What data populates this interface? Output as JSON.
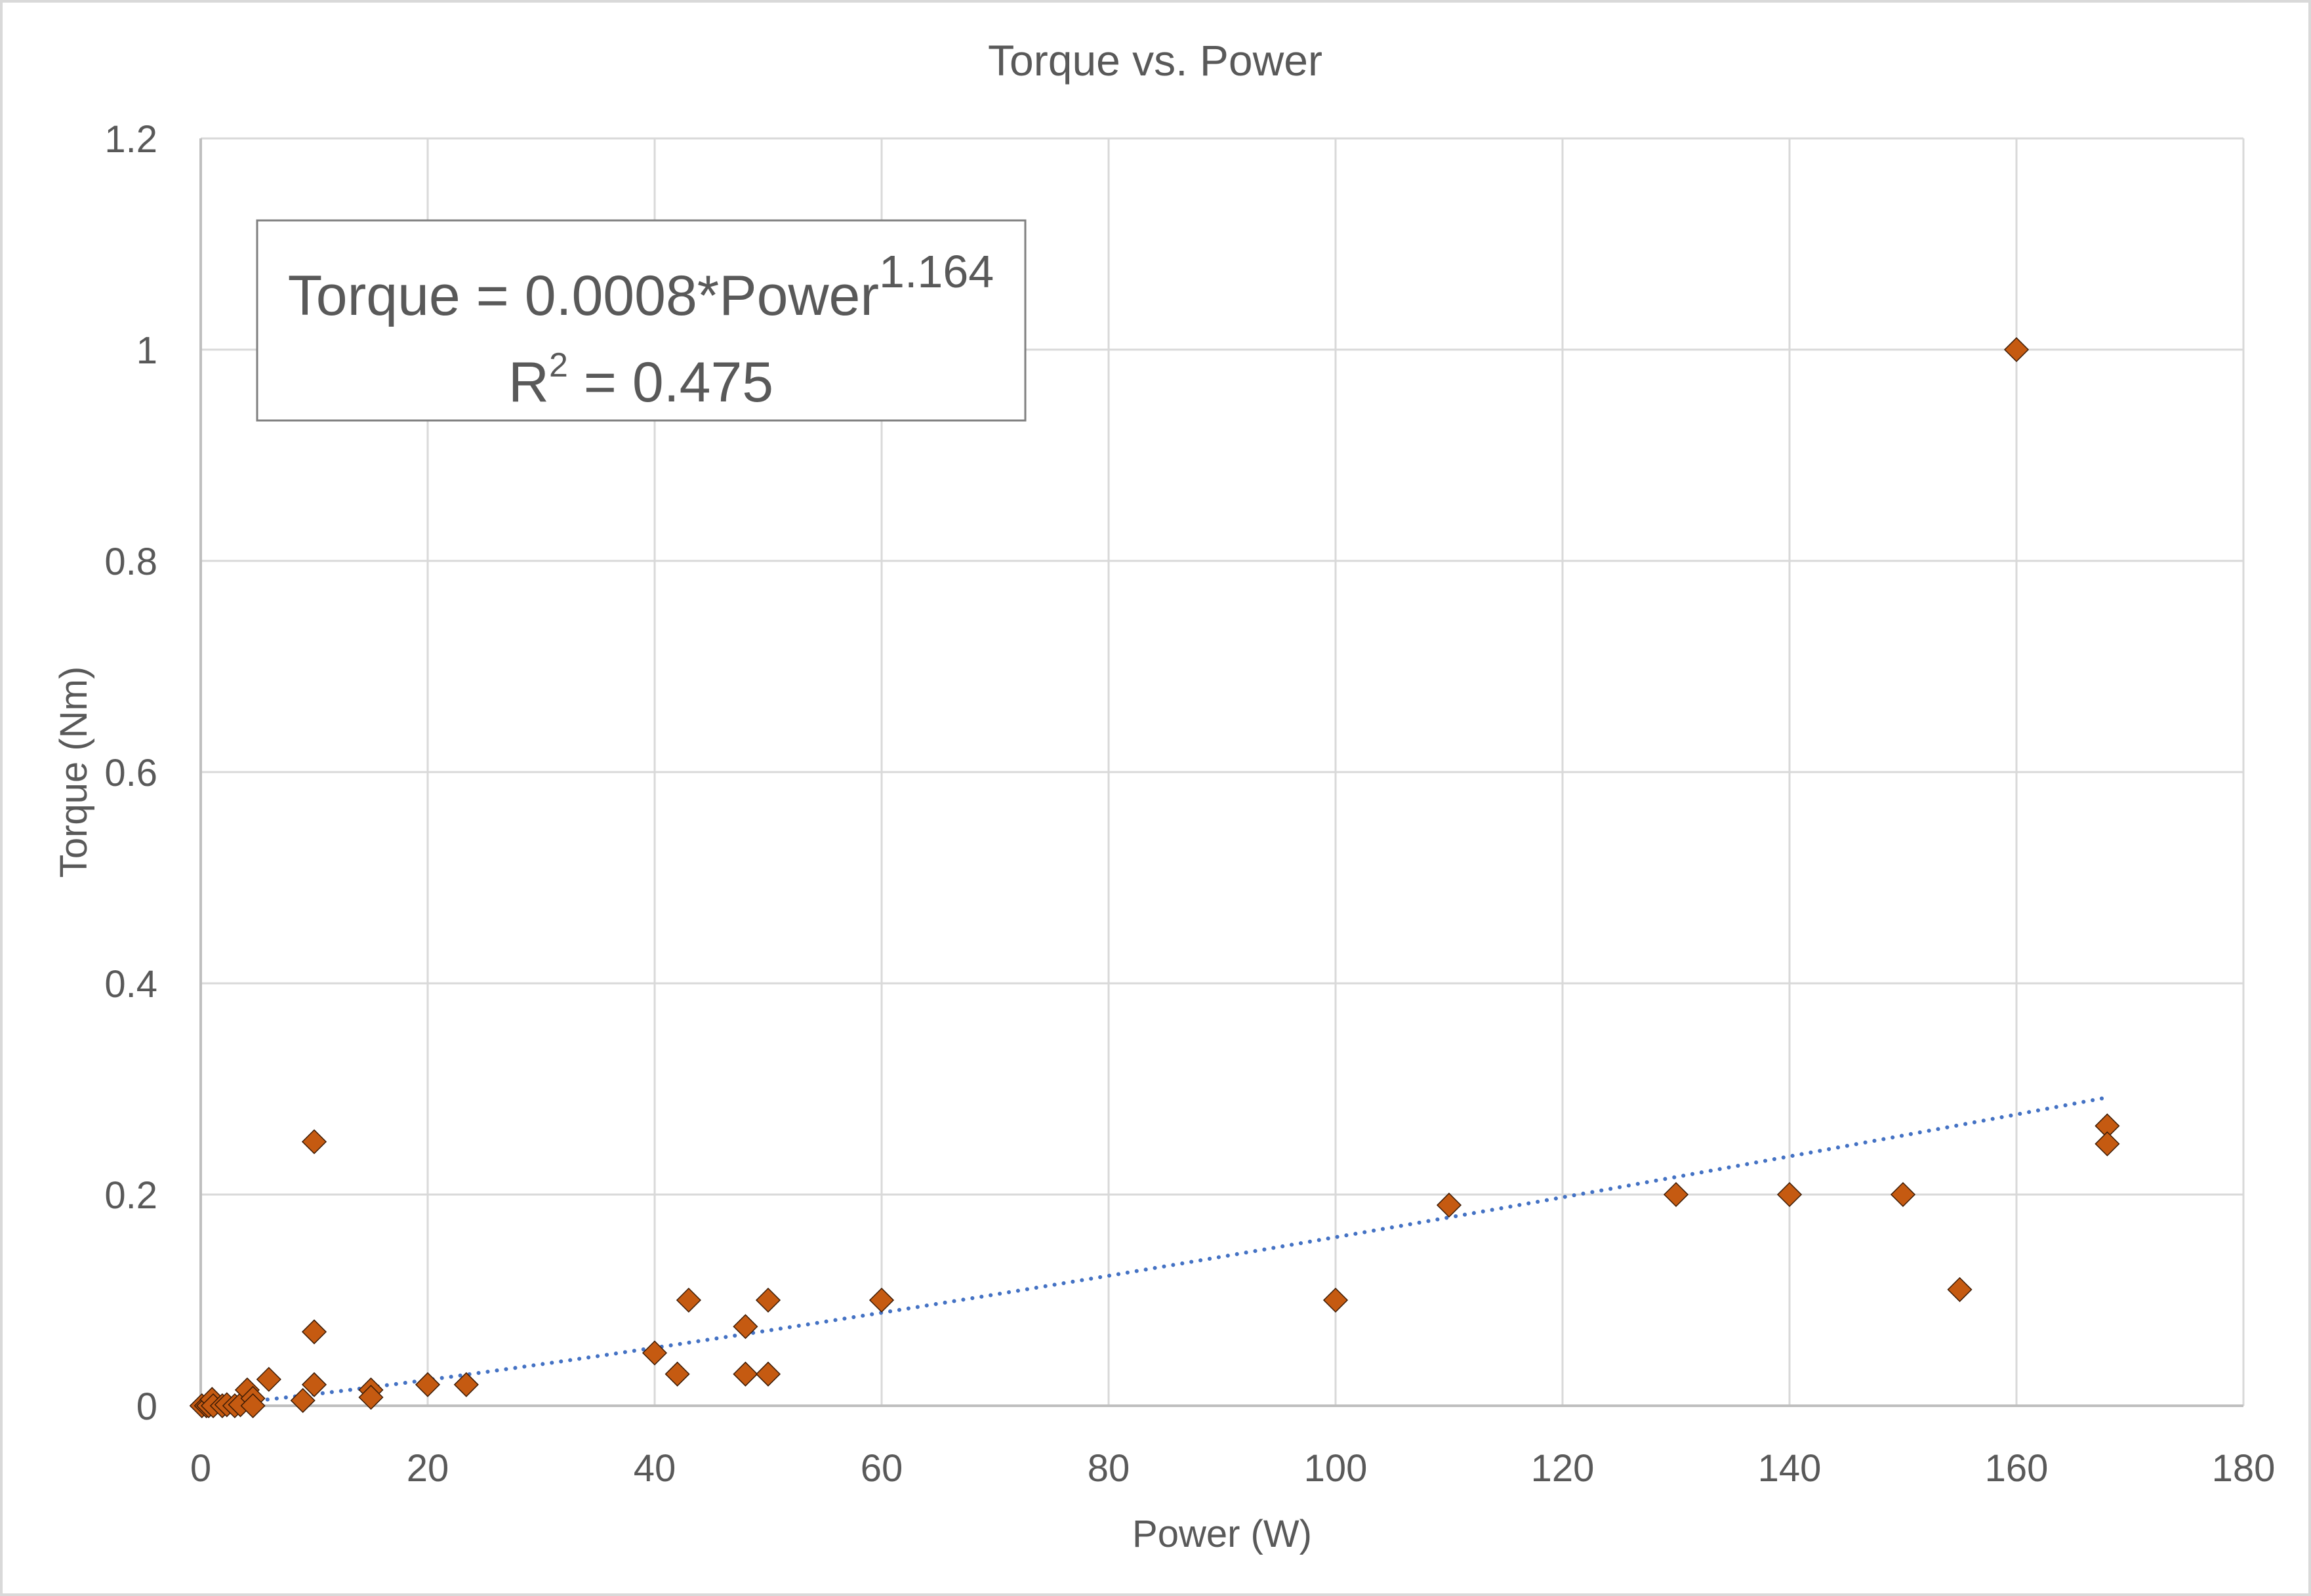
{
  "chart_data": {
    "type": "scatter",
    "title": "Torque vs. Power",
    "xlabel": "Power (W)",
    "ylabel": "Torque (Nm)",
    "xlim": [
      0,
      180
    ],
    "ylim": [
      0,
      1.2
    ],
    "x_ticks": [
      0,
      20,
      40,
      60,
      80,
      100,
      120,
      140,
      160,
      180
    ],
    "y_ticks": [
      0,
      0.2,
      0.4,
      0.6,
      0.8,
      1,
      1.2
    ],
    "x_tick_labels": [
      "0",
      "20",
      "40",
      "60",
      "80",
      "100",
      "120",
      "140",
      "160",
      "180"
    ],
    "y_tick_labels": [
      "0",
      "0.2",
      "0.4",
      "0.6",
      "0.8",
      "1",
      "1.2"
    ],
    "grid": true,
    "legend": null,
    "series": [
      {
        "name": "Torque",
        "marker": "diamond",
        "color": "#C55A11",
        "points": [
          {
            "x": 0.1,
            "y": 0
          },
          {
            "x": 0.5,
            "y": 0
          },
          {
            "x": 0.7,
            "y": 0
          },
          {
            "x": 1.0,
            "y": 0.006
          },
          {
            "x": 1.1,
            "y": 0
          },
          {
            "x": 1.9,
            "y": 0
          },
          {
            "x": 2.3,
            "y": 0.001
          },
          {
            "x": 3.0,
            "y": 0
          },
          {
            "x": 3.5,
            "y": 0.001
          },
          {
            "x": 4.1,
            "y": 0.015
          },
          {
            "x": 4.6,
            "y": 0.007
          },
          {
            "x": 4.6,
            "y": 0
          },
          {
            "x": 6,
            "y": 0.025
          },
          {
            "x": 9,
            "y": 0.005
          },
          {
            "x": 10,
            "y": 0.25
          },
          {
            "x": 10,
            "y": 0.07
          },
          {
            "x": 10,
            "y": 0.02
          },
          {
            "x": 15,
            "y": 0.015
          },
          {
            "x": 15,
            "y": 0.008
          },
          {
            "x": 20,
            "y": 0.02
          },
          {
            "x": 23.4,
            "y": 0.02
          },
          {
            "x": 40,
            "y": 0.05
          },
          {
            "x": 42,
            "y": 0.03
          },
          {
            "x": 43,
            "y": 0.1
          },
          {
            "x": 48,
            "y": 0.075
          },
          {
            "x": 48,
            "y": 0.03
          },
          {
            "x": 50,
            "y": 0.1
          },
          {
            "x": 50,
            "y": 0.03
          },
          {
            "x": 60,
            "y": 0.1
          },
          {
            "x": 100,
            "y": 0.1
          },
          {
            "x": 110,
            "y": 0.19
          },
          {
            "x": 130,
            "y": 0.2
          },
          {
            "x": 140,
            "y": 0.2
          },
          {
            "x": 150,
            "y": 0.2
          },
          {
            "x": 155,
            "y": 0.11
          },
          {
            "x": 160,
            "y": 1.0
          },
          {
            "x": 168,
            "y": 0.265
          },
          {
            "x": 168,
            "y": 0.248
          }
        ]
      }
    ],
    "trendline": {
      "type": "power",
      "style": "dotted",
      "color": "#4472C4",
      "coefficient": 0.0008,
      "exponent": 1.164,
      "r_squared": 0.475,
      "x_range": [
        0.2,
        168
      ],
      "render_coefficient": 0.00075
    },
    "annotation": {
      "equation_main": "Torque = 0.0008*Power",
      "equation_exponent": "1.164",
      "r2_label": "R",
      "r2_sup": "2",
      "r2_value": " = 0.475"
    }
  },
  "colors": {
    "text": "#595959",
    "gridline": "#d9d9d9",
    "axis": "#bfbfbf",
    "frame": "#d9d9d9",
    "marker_fill": "#C55A11",
    "marker_stroke": "#3a1a05",
    "trendline": "#4472C4"
  }
}
